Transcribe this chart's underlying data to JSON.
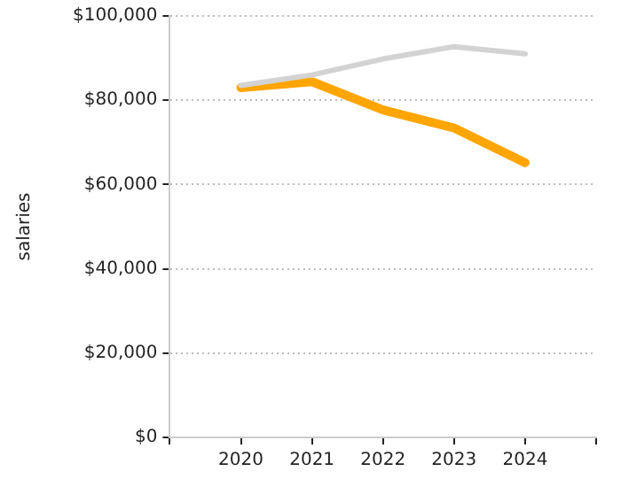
{
  "chart_data": {
    "type": "line",
    "ylabel": "salaries",
    "x": [
      2020,
      2021,
      2022,
      2023,
      2024
    ],
    "series": [
      {
        "color": "#d3d3d3",
        "values": [
          83500,
          86000,
          89800,
          92700,
          91000
        ]
      },
      {
        "color": "#ffa500",
        "values": [
          83000,
          84400,
          77700,
          73400,
          65200
        ]
      }
    ],
    "xlim": [
      2019,
      2025
    ],
    "xticks": [
      {
        "value": 2019,
        "label": null
      },
      2020,
      2021,
      2022,
      2023,
      2024,
      {
        "value": 2025,
        "label": null
      }
    ],
    "ylim": [
      0,
      100000
    ],
    "yticks": [
      {
        "value": 0,
        "label": "$0"
      },
      {
        "value": 20000,
        "label": "$20,000"
      },
      {
        "value": 40000,
        "label": "$40,000"
      },
      {
        "value": 60000,
        "label": "$60,000"
      },
      {
        "value": 80000,
        "label": "$80,000"
      },
      {
        "value": 100000,
        "label": "$100,000"
      }
    ],
    "grid": "y",
    "legend": false,
    "marker": "none",
    "line_style": "solid"
  }
}
